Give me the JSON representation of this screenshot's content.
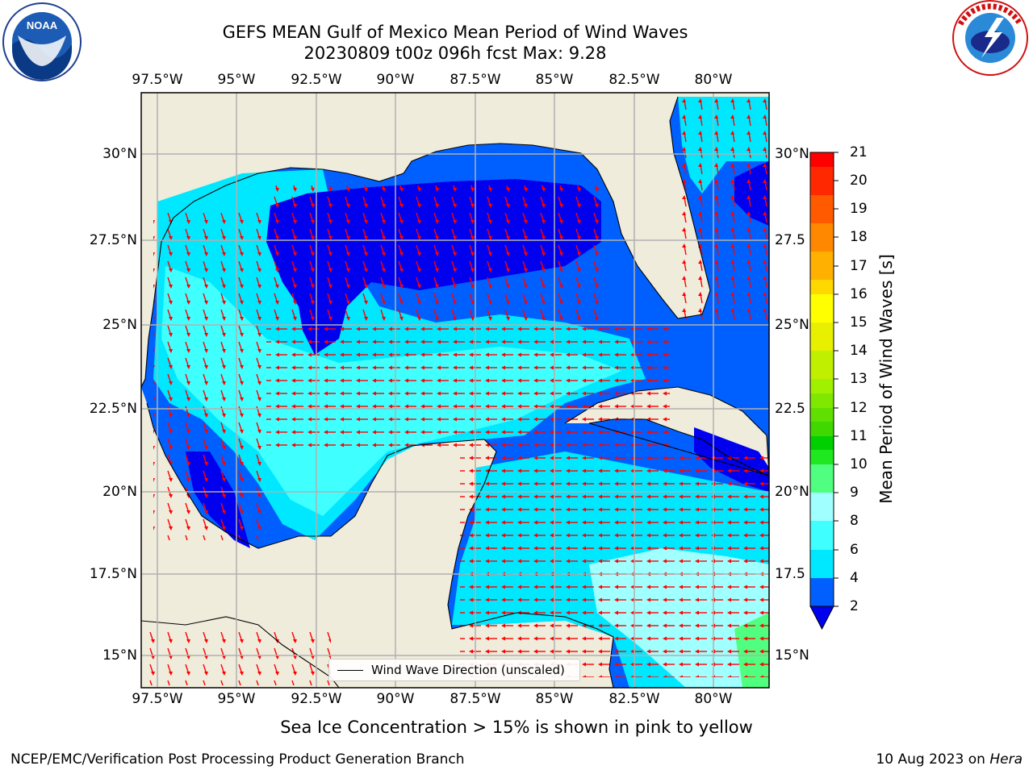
{
  "title_line1": "GEFS MEAN Gulf of Mexico Mean Period of Wind Waves",
  "title_line2": "20230809 t00z 096h fcst   Max: 9.28",
  "lon_labels": [
    "97.5°W",
    "95°W",
    "92.5°W",
    "90°W",
    "87.5°W",
    "85°W",
    "82.5°W",
    "80°W"
  ],
  "lat_labels": [
    "30°N",
    "27.5°N",
    "25°N",
    "22.5°N",
    "20°N",
    "17.5°N",
    "15°N"
  ],
  "lat_labels_right": [
    "30°N",
    "27.5",
    "25°N",
    "22.5",
    "20°N",
    "17.5",
    "15°N"
  ],
  "colorbar": {
    "label": "Mean Period of Wind Waves [s]",
    "ticks": [
      "2",
      "4",
      "6",
      "8",
      "9",
      "10",
      "11",
      "12",
      "13",
      "14",
      "15",
      "16",
      "17",
      "18",
      "19",
      "20",
      "21"
    ],
    "colors": [
      "#0060ff",
      "#00e8ff",
      "#40ffff",
      "#a0ffff",
      "#50ff80",
      "#20e820",
      "#00d000",
      "#60e000",
      "#c0f000",
      "#e8f000",
      "#ffff00",
      "#ffd800",
      "#ffb000",
      "#ff8800",
      "#ff5a00",
      "#ff2800",
      "#ff0000"
    ]
  },
  "legend": {
    "label": "Wind Wave Direction (unscaled)"
  },
  "note": "Sea Ice Concentration > 15% is shown in pink to yellow",
  "credit": "NCEP/EMC/Verification Post Processing Product Generation Branch",
  "date_text": "10 Aug 2023 on ",
  "date_machine": "Hera",
  "map_colors": {
    "land": "#efecdc",
    "coast": "#000000",
    "grid": "#b0b0b0",
    "arrow": "#ff0000",
    "period_2_4": "#0060ff",
    "period_low": "#0000ee",
    "period_4_6": "#00e8ff",
    "period_6_8": "#40ffff",
    "period_8_9": "#a0ffff",
    "period_9_10": "#50ff80"
  },
  "logos": {
    "left": "NOAA",
    "right": "NATIONAL WEATHER SERVICE"
  }
}
